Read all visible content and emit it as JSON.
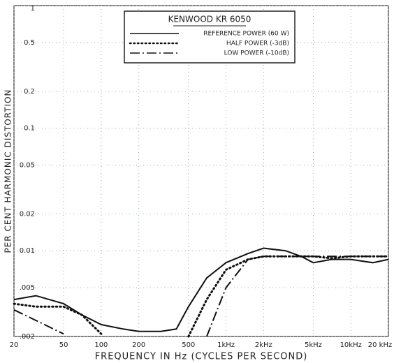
{
  "chart_data": {
    "type": "line",
    "title": "KENWOOD KR 6050",
    "x_label": "FREQUENCY IN Hz (CYCLES PER SECOND)",
    "y_label": "PER CENT HARMONIC DISTORTION",
    "x": [
      20,
      30,
      50,
      70,
      100,
      150,
      200,
      300,
      400,
      500,
      700,
      1000,
      1500,
      2000,
      3000,
      4000,
      5000,
      7000,
      10000,
      15000,
      20000
    ],
    "series": [
      {
        "name": "REFERENCE POWER (60 W)",
        "color": "#111111",
        "style": "solid",
        "values": [
          0.004,
          0.0043,
          0.0037,
          0.003,
          0.0025,
          0.0023,
          0.0022,
          0.0022,
          0.0023,
          0.0035,
          0.006,
          0.008,
          0.0095,
          0.0105,
          0.01,
          0.009,
          0.008,
          0.0085,
          0.0085,
          0.008,
          0.0085
        ]
      },
      {
        "name": "HALF POWER (-3dB)",
        "color": "#111111",
        "style": "dotted",
        "values": [
          0.0037,
          0.0035,
          0.0035,
          0.003,
          0.0021,
          null,
          null,
          null,
          null,
          0.002,
          0.004,
          0.007,
          0.0085,
          0.009,
          0.009,
          0.009,
          0.009,
          0.0087,
          0.009,
          0.009,
          0.009
        ]
      },
      {
        "name": "LOW POWER (-10dB)",
        "color": "#111111",
        "style": "dashdot",
        "values": [
          0.0033,
          0.0027,
          0.0021,
          null,
          null,
          null,
          null,
          null,
          null,
          null,
          0.002,
          0.005,
          0.0085,
          0.009,
          0.009,
          0.009,
          0.009,
          0.009,
          0.009,
          0.009,
          0.009
        ]
      }
    ],
    "xlim": [
      20,
      20000
    ],
    "ylim": [
      0.002,
      1
    ],
    "log_x": true,
    "log_y": true,
    "grid": true,
    "xticks": [
      20,
      50,
      100,
      200,
      500,
      {
        "value": 1000,
        "label": "1kHz"
      },
      {
        "value": 2000,
        "label": "2kHz"
      },
      {
        "value": 5000,
        "label": "5kHz"
      },
      {
        "value": 10000,
        "label": "10kHz"
      },
      {
        "value": 20000,
        "label": "20 kHz"
      }
    ],
    "yticks": [
      1,
      0.5,
      0.2,
      0.1,
      0.05,
      0.02,
      0.01,
      {
        "value": 0.005,
        "label": ".005"
      },
      {
        "value": 0.002,
        "label": ".002"
      }
    ]
  }
}
